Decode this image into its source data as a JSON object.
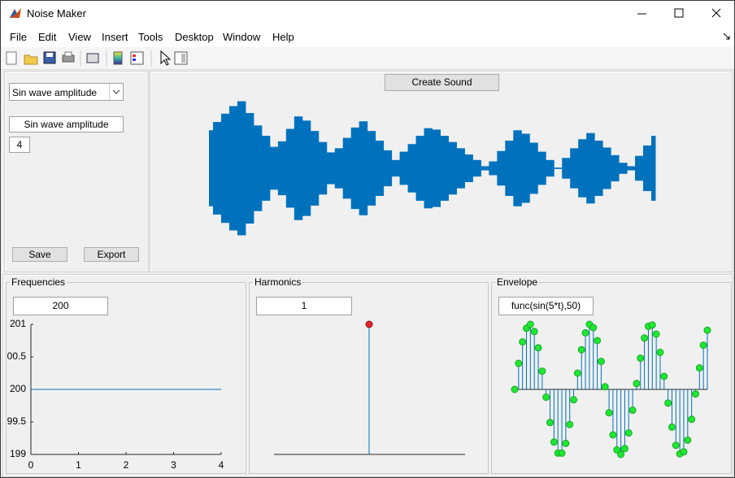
{
  "window": {
    "title": "Noise Maker"
  },
  "menu": [
    "File",
    "Edit",
    "View",
    "Insert",
    "Tools",
    "Desktop",
    "Window",
    "Help"
  ],
  "controls": {
    "dropdown": "Sin wave amplitude",
    "name_field": "Sin wave amplitude",
    "value_field": "4",
    "save_button": "Save",
    "export_button": "Export"
  },
  "create_button": "Create Sound",
  "waveform": {
    "type": "amplitude-envelope",
    "color": "#0072bd",
    "amplitudes": [
      0.55,
      0.67,
      0.79,
      0.9,
      0.97,
      0.8,
      0.62,
      0.47,
      0.31,
      0.39,
      0.57,
      0.75,
      0.69,
      0.54,
      0.38,
      0.23,
      0.29,
      0.44,
      0.59,
      0.68,
      0.54,
      0.4,
      0.26,
      0.12,
      0.24,
      0.35,
      0.47,
      0.58,
      0.56,
      0.47,
      0.38,
      0.29,
      0.2,
      0.12,
      0.03,
      0.1,
      0.25,
      0.4,
      0.55,
      0.5,
      0.37,
      0.24,
      0.12,
      0.01,
      0.15,
      0.29,
      0.42,
      0.51,
      0.4,
      0.3,
      0.19,
      0.08,
      0.03,
      0.18,
      0.33,
      0.47
    ]
  },
  "frequencies": {
    "title": "Frequencies",
    "field": "200",
    "chart": {
      "type": "line",
      "color": "#0072bd",
      "x": [
        0,
        4
      ],
      "y": [
        200,
        200
      ],
      "xlim": [
        0,
        4
      ],
      "xticks": [
        0,
        1,
        2,
        3,
        4
      ],
      "ylim": [
        199,
        201
      ],
      "yticks": [
        199,
        {
          "value": 199.5,
          "label": "99.5"
        },
        200,
        {
          "value": 200.5,
          "label": "00.5"
        },
        201
      ]
    }
  },
  "harmonics": {
    "title": "Harmonics",
    "field": "1",
    "chart": {
      "type": "stem",
      "color": "#0072bd",
      "marker_color": "#e8232b",
      "values": [
        1
      ],
      "ylim": [
        0,
        1
      ]
    }
  },
  "envelope": {
    "title": "Envelope",
    "field": "func(sin(5*t),50)",
    "chart": {
      "type": "stem",
      "color": "#0072bd",
      "marker_color": "#1ee830",
      "ylim": [
        -1,
        1
      ],
      "values": [
        0,
        0.4,
        0.73,
        0.94,
        1,
        0.89,
        0.64,
        0.28,
        -0.12,
        -0.51,
        -0.81,
        -0.98,
        -0.98,
        -0.83,
        -0.54,
        -0.16,
        0.25,
        0.61,
        0.87,
        1,
        0.95,
        0.75,
        0.43,
        0.04,
        -0.36,
        -0.7,
        -0.93,
        -1,
        -0.91,
        -0.67,
        -0.32,
        0.09,
        0.48,
        0.79,
        0.97,
        0.99,
        0.85,
        0.57,
        0.2,
        -0.21,
        -0.58,
        -0.86,
        -0.99,
        -0.96,
        -0.78,
        -0.46,
        -0.07,
        0.33,
        0.68,
        0.91
      ]
    }
  }
}
